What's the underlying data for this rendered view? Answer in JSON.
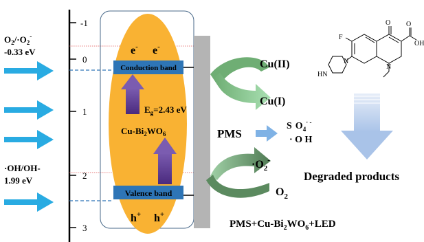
{
  "axis": {
    "ticks": [
      {
        "value": -1,
        "label": "-1"
      },
      {
        "value": 0,
        "label": "0"
      },
      {
        "value": 1,
        "label": "1"
      },
      {
        "value": 2,
        "label": "2"
      },
      {
        "value": 3,
        "label": "3"
      }
    ]
  },
  "potentials": {
    "o2": {
      "label_a": "O",
      "sub_a": "2",
      "label_b": "/·O",
      "sub_b": "2",
      "sup_b": "-",
      "value": "-0.33 eV"
    },
    "oh": {
      "label": "·OH/OH-",
      "value": "1.99 eV"
    }
  },
  "catalyst": {
    "cb_label": "Conduction band",
    "vb_label": "Valence band",
    "electron": "e",
    "electron_sup": "-",
    "hole": "h",
    "hole_sup": "+",
    "eg_prefix": "E",
    "eg_sub": "g",
    "eg_value": "=2.43 eV",
    "name_a": "Cu-Bi",
    "name_sub1": "2",
    "name_b": "WO",
    "name_sub2": "6"
  },
  "reactions": {
    "cu2": "Cu(II)",
    "cu1": "Cu(I)",
    "pms": "PMS",
    "so4_s": "S",
    "so4_o": "O",
    "so4_sub": "4",
    "so4_sup": "· -",
    "oh_radical": "· O H",
    "o2_radical": "·O",
    "o2_radical_sub": "2",
    "o2_radical_sup": "-",
    "o2": "O",
    "o2_sub": "2"
  },
  "molecule": {
    "f": "F",
    "o": "O",
    "oh": "OH",
    "n": "N",
    "hn": "HN"
  },
  "labels": {
    "degraded": "Degraded products",
    "system_a": "PMS+Cu-Bi",
    "system_sub1": "2",
    "system_b": "WO",
    "system_sub2": "6",
    "system_c": "+LED"
  },
  "colors": {
    "light_arrows": "#29abe2",
    "ellipse": "#f9b233",
    "band": "#2e75b6",
    "up_arrow": "#6a4c9c",
    "curved_arrow_top": "#8fd19e",
    "curved_arrow_bottom": "#5b8a5f",
    "pms_arrow": "#7fb2e5",
    "degraded_arrow": "#bdd1ee",
    "electrode": "#b4b4b4"
  }
}
